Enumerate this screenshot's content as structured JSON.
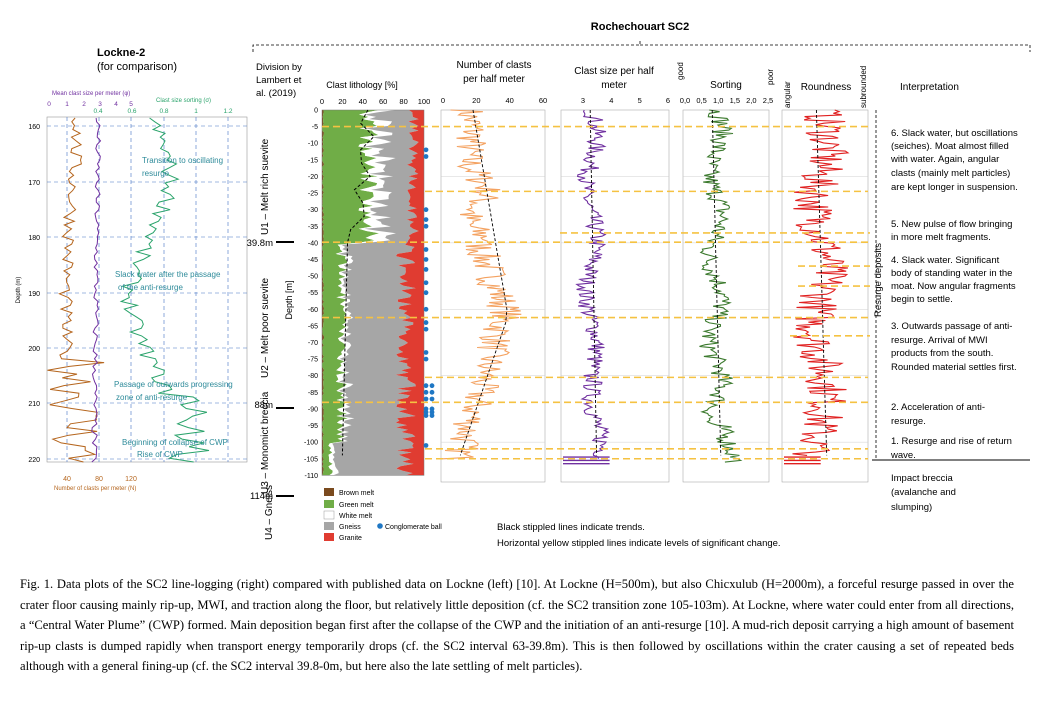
{
  "lockne": {
    "title": "Lockne-2",
    "subtitle": "(for comparison)",
    "axis_mean_size_label": "Mean clast size per meter (φ)",
    "axis_mean_size_ticks": [
      "0",
      "1",
      "2",
      "3",
      "4",
      "5"
    ],
    "axis_sorting_label": "Clast size sorting (σ)",
    "axis_sorting_ticks": [
      "0.4",
      "0.6",
      "0.8",
      "1",
      "1.2"
    ],
    "depth_label": "Depth (m)",
    "depth_ticks": [
      "160",
      "170",
      "180",
      "190",
      "200",
      "210",
      "220"
    ],
    "axis_number_ticks": [
      "40",
      "80",
      "120"
    ],
    "axis_number_label": "Number of clasts per meter (N)",
    "annotations": [
      "Transition to oscillating",
      "resurge",
      "Slack water after the passage",
      "of the anti-resurge",
      "Passage of outwards progressing",
      "zone of anti-resurge",
      "Beginning of collapse of CWP",
      "Rise of CWP"
    ],
    "colors": {
      "mean_size": "#7030a0",
      "sorting": "#2aa36b",
      "number": "#b5651d",
      "grid": "#4472c4",
      "annotation": "#2e8b9a"
    }
  },
  "sc2": {
    "title": "Rochechouart  SC2",
    "division_header": [
      "Division by",
      "Lambert et",
      "al. (2019)"
    ],
    "units": [
      "U1 – Melt rich suevite",
      "U2 – Melt poor suevite",
      "U3 – Monomict breccia",
      "U4 – Gneiss"
    ],
    "boundary_labels": [
      "39.8m",
      "88m",
      "114m"
    ],
    "depth_label": "Depth [m]",
    "depth_ticks": [
      "0",
      "-5",
      "-10",
      "-15",
      "-20",
      "-25",
      "-30",
      "-35",
      "-40",
      "-45",
      "-50",
      "-55",
      "-60",
      "-65",
      "-70",
      "-75",
      "-80",
      "-85",
      "-90",
      "-95",
      "-100",
      "-105",
      "-110"
    ],
    "lithology": {
      "header": "Clast lithology [%]",
      "ticks": [
        "0",
        "20",
        "40",
        "60",
        "80",
        "100"
      ],
      "legend": [
        "Brown melt",
        "Green melt",
        "White melt",
        "Gneiss",
        "Granite",
        "Conglomerate ball"
      ],
      "colors": {
        "brown": "#7a4a1e",
        "green": "#70ad47",
        "white": "#ffffff",
        "gneiss": "#a6a6a6",
        "granite": "#e03c31",
        "ball": "#1f77c4"
      }
    },
    "number_panel": {
      "header": [
        "Number of clasts",
        "per half meter"
      ],
      "ticks": [
        "0",
        "20",
        "40",
        "60"
      ],
      "color": "#f4a261"
    },
    "size_panel": {
      "header": [
        "Clast size per half",
        "meter"
      ],
      "ticks": [
        "3",
        "4",
        "5",
        "6"
      ],
      "color": "#7030a0"
    },
    "sorting_panel": {
      "header": "Sorting",
      "ticks": [
        "0,0",
        "0,5",
        "1,0",
        "1,5",
        "2,0",
        "2,5"
      ],
      "left_label": "good",
      "right_label": "poor",
      "color": "#3c7a2e"
    },
    "roundness_panel": {
      "header": "Roundness",
      "left_label": "angular",
      "right_label": "subrounded",
      "color": "#e02020"
    },
    "interpretation_header": "Interpretation",
    "resurge_label": "Resurge deposits",
    "interpretations": [
      [
        "6. Slack water, but oscillations",
        "(seiches). Moat almost filled",
        "with water. Again, angular",
        "clasts (mainly melt particles)",
        "are kept longer in suspension."
      ],
      [
        "5. New pulse of flow bringing",
        "in more melt fragments."
      ],
      [
        "4. Slack water. Significant",
        "body of standing water in the",
        "moat. Now angular fragments",
        "begin to settle."
      ],
      [
        "3. Outwards passage of anti-",
        "resurge. Arrival of MWI",
        "products from the south.",
        "Rounded material settles first."
      ],
      [
        "2. Acceleration of anti-",
        "resurge."
      ],
      [
        "1. Resurge and rise of return",
        "wave."
      ],
      [
        "Impact breccia",
        "(avalanche and",
        "slumping)"
      ]
    ],
    "notes": [
      "Black stippled lines indicate trends.",
      "Horizontal yellow stippled lines indicate levels of significant change."
    ],
    "colors": {
      "yellow_line": "#f5c242"
    }
  },
  "caption": "Fig. 1. Data plots of the SC2 line-logging (right) compared with published data on Lockne (left) [10]. At Lockne (H=500m), but also Chicxulub (H=2000m), a forceful resurge passed in over the crater floor causing mainly rip-up, MWI, and traction along the floor, but relatively little deposition (cf. the SC2 transition zone 105-103m). At Lockne, where water could enter from all directions, a “Central Water Plume” (CWP) formed. Main deposition began first after the collapse of the CWP and the initiation of an anti-resurge [10]. A mud-rich deposit carrying a high amount of basement rip-up clasts is dumped rapidly when transport energy temporarily drops (cf. the SC2 interval 63-39.8m). This is then followed by oscillations within the crater causing  a set of repeated beds although  with a general fining-up  (cf. the SC2 interval  39.8-0m, but here also the late settling  of melt particles)."
}
